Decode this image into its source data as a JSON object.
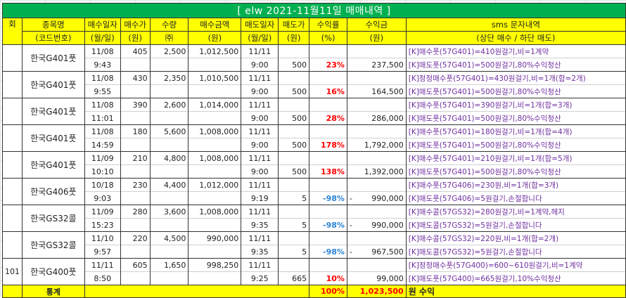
{
  "title": "[ elw 2021-11월11일  매매내역 ]",
  "colors": {
    "title_bg": "#00b050",
    "header_bg": "#ffff00",
    "profit": "#ff0000",
    "loss": "#2e86d6",
    "sms": "#7030a0"
  },
  "headers": {
    "round": "회",
    "row1": [
      "종목명",
      "매수일자",
      "매수가",
      "수량",
      "매수금액",
      "매도일자",
      "매도가",
      "수익률",
      "수익금",
      "sms 문자내역"
    ],
    "row2": [
      "(코드번호)",
      "(월/일)",
      "(원)",
      "㈜",
      "(원)",
      "(월/일)",
      "(원)",
      "(%)",
      "(원)",
      "(상단 매수 / 하단 매도)"
    ]
  },
  "trades": [
    {
      "round": "",
      "name": "한국G401풋",
      "buy_date": "11/08",
      "buy_time": "9:43",
      "buy_price": "405",
      "qty": "2,500",
      "buy_amount": "1,012,500",
      "sell_date": "11/11",
      "sell_time": "9:00",
      "sell_price": "500",
      "rate": "23%",
      "loss": false,
      "profit_sign": "",
      "profit": "237,500",
      "sms_buy": "[K]매수풋(57G401)=410원걸기,비=1계약",
      "sms_sell": "[K]매도풋(57G401)=500원걸기,80%수익청산"
    },
    {
      "round": "",
      "name": "한국G401풋",
      "buy_date": "11/08",
      "buy_time": "9:55",
      "buy_price": "430",
      "qty": "2,350",
      "buy_amount": "1,010,500",
      "sell_date": "11/11",
      "sell_time": "9:00",
      "sell_price": "500",
      "rate": "16%",
      "loss": false,
      "profit_sign": "",
      "profit": "164,500",
      "sms_buy": "[K]정정매수풋(57G401)=430원걸기,비=1개(합=2개)",
      "sms_sell": "[K]매도풋(57G401)=500원걸기,80%수익청산"
    },
    {
      "round": "",
      "name": "한국G401풋",
      "buy_date": "11/08",
      "buy_time": "11:01",
      "buy_price": "390",
      "qty": "2,600",
      "buy_amount": "1,014,000",
      "sell_date": "11/11",
      "sell_time": "9:00",
      "sell_price": "500",
      "rate": "28%",
      "loss": false,
      "profit_sign": "",
      "profit": "286,000",
      "sms_buy": "[K]매수풋(57G401)=390원걸기,비=1개(합=3개)",
      "sms_sell": "[K]매도풋(57G401)=500원걸기,80%수익청산"
    },
    {
      "round": "",
      "name": "한국G401풋",
      "buy_date": "11/08",
      "buy_time": "14:59",
      "buy_price": "180",
      "qty": "5,600",
      "buy_amount": "1,008,000",
      "sell_date": "11/11",
      "sell_time": "9:00",
      "sell_price": "500",
      "rate": "178%",
      "loss": false,
      "profit_sign": "",
      "profit": "1,792,000",
      "sms_buy": "[K]매수풋(57G401)=180원걸기,비=1개(합=4개)",
      "sms_sell": "[K]매도풋(57G401)=500원걸기,80%수익청산"
    },
    {
      "round": "",
      "name": "한국G401풋",
      "buy_date": "11/09",
      "buy_time": "10:10",
      "buy_price": "210",
      "qty": "4,800",
      "buy_amount": "1,008,000",
      "sell_date": "11/11",
      "sell_time": "9:00",
      "sell_price": "500",
      "rate": "138%",
      "loss": false,
      "profit_sign": "",
      "profit": "1,392,000",
      "sms_buy": "[K]매수풋(57G401)=210원걸기,비=1개(합=5개)",
      "sms_sell": "[K]매도풋(57G401)=500원걸기,80%수익청산"
    },
    {
      "round": "",
      "name": "한국G406풋",
      "buy_date": "10/18",
      "buy_time": "9:03",
      "buy_price": "230",
      "qty": "4,400",
      "buy_amount": "1,012,000",
      "sell_date": "11/11",
      "sell_time": "9:19",
      "sell_price": "5",
      "rate": "-98%",
      "loss": true,
      "profit_sign": "-",
      "profit": "990,000",
      "sms_buy": "[K]매수풋(57G406)=230원,비=1개(합=3개)",
      "sms_sell": "[K]매도풋(57G406)=5원걸기,손절합니다"
    },
    {
      "round": "",
      "name": "한국GS32콜",
      "buy_date": "11/09",
      "buy_time": "15:23",
      "buy_price": "280",
      "qty": "3,600",
      "buy_amount": "1,008,000",
      "sell_date": "11/11",
      "sell_time": "9:35",
      "sell_price": "5",
      "rate": "-98%",
      "loss": true,
      "profit_sign": "-",
      "profit": "990,000",
      "sms_buy": "[K]매수콜(57GS32)=280원걸기,비=1계약,헤지",
      "sms_sell": "[K]매도콜(57GS32)=5원걸기,손절합니다"
    },
    {
      "round": "",
      "name": "한국GS32콜",
      "buy_date": "11/10",
      "buy_time": "9:57",
      "buy_price": "220",
      "qty": "4,500",
      "buy_amount": "990,000",
      "sell_date": "11/11",
      "sell_time": "9:35",
      "sell_price": "5",
      "rate": "-98%",
      "loss": true,
      "profit_sign": "-",
      "profit": "967,500",
      "sms_buy": "[K]매수콜(57GS32)=220원,비=1개(합=2개)",
      "sms_sell": "[K]매도콜(57GS32)=5원걸기,손절합니다"
    },
    {
      "round": "101",
      "name": "한국G400풋",
      "buy_date": "11/11",
      "buy_time": "8:50",
      "buy_price": "605",
      "qty": "1,650",
      "buy_amount": "998,250",
      "sell_date": "11/11",
      "sell_time": "9:25",
      "sell_price": "665",
      "rate": "10%",
      "loss": false,
      "profit_sign": "",
      "profit": "99,000",
      "sms_buy": "[K]정정매수풋(57G400)=600~610원걸기,비=1계약",
      "sms_sell": "[K]매도풋(57G400)=665원걸기,10%수익청산"
    }
  ],
  "total": {
    "label": "통계",
    "rate": "100%",
    "profit": "1,023,500",
    "suffix": "원 수익"
  }
}
